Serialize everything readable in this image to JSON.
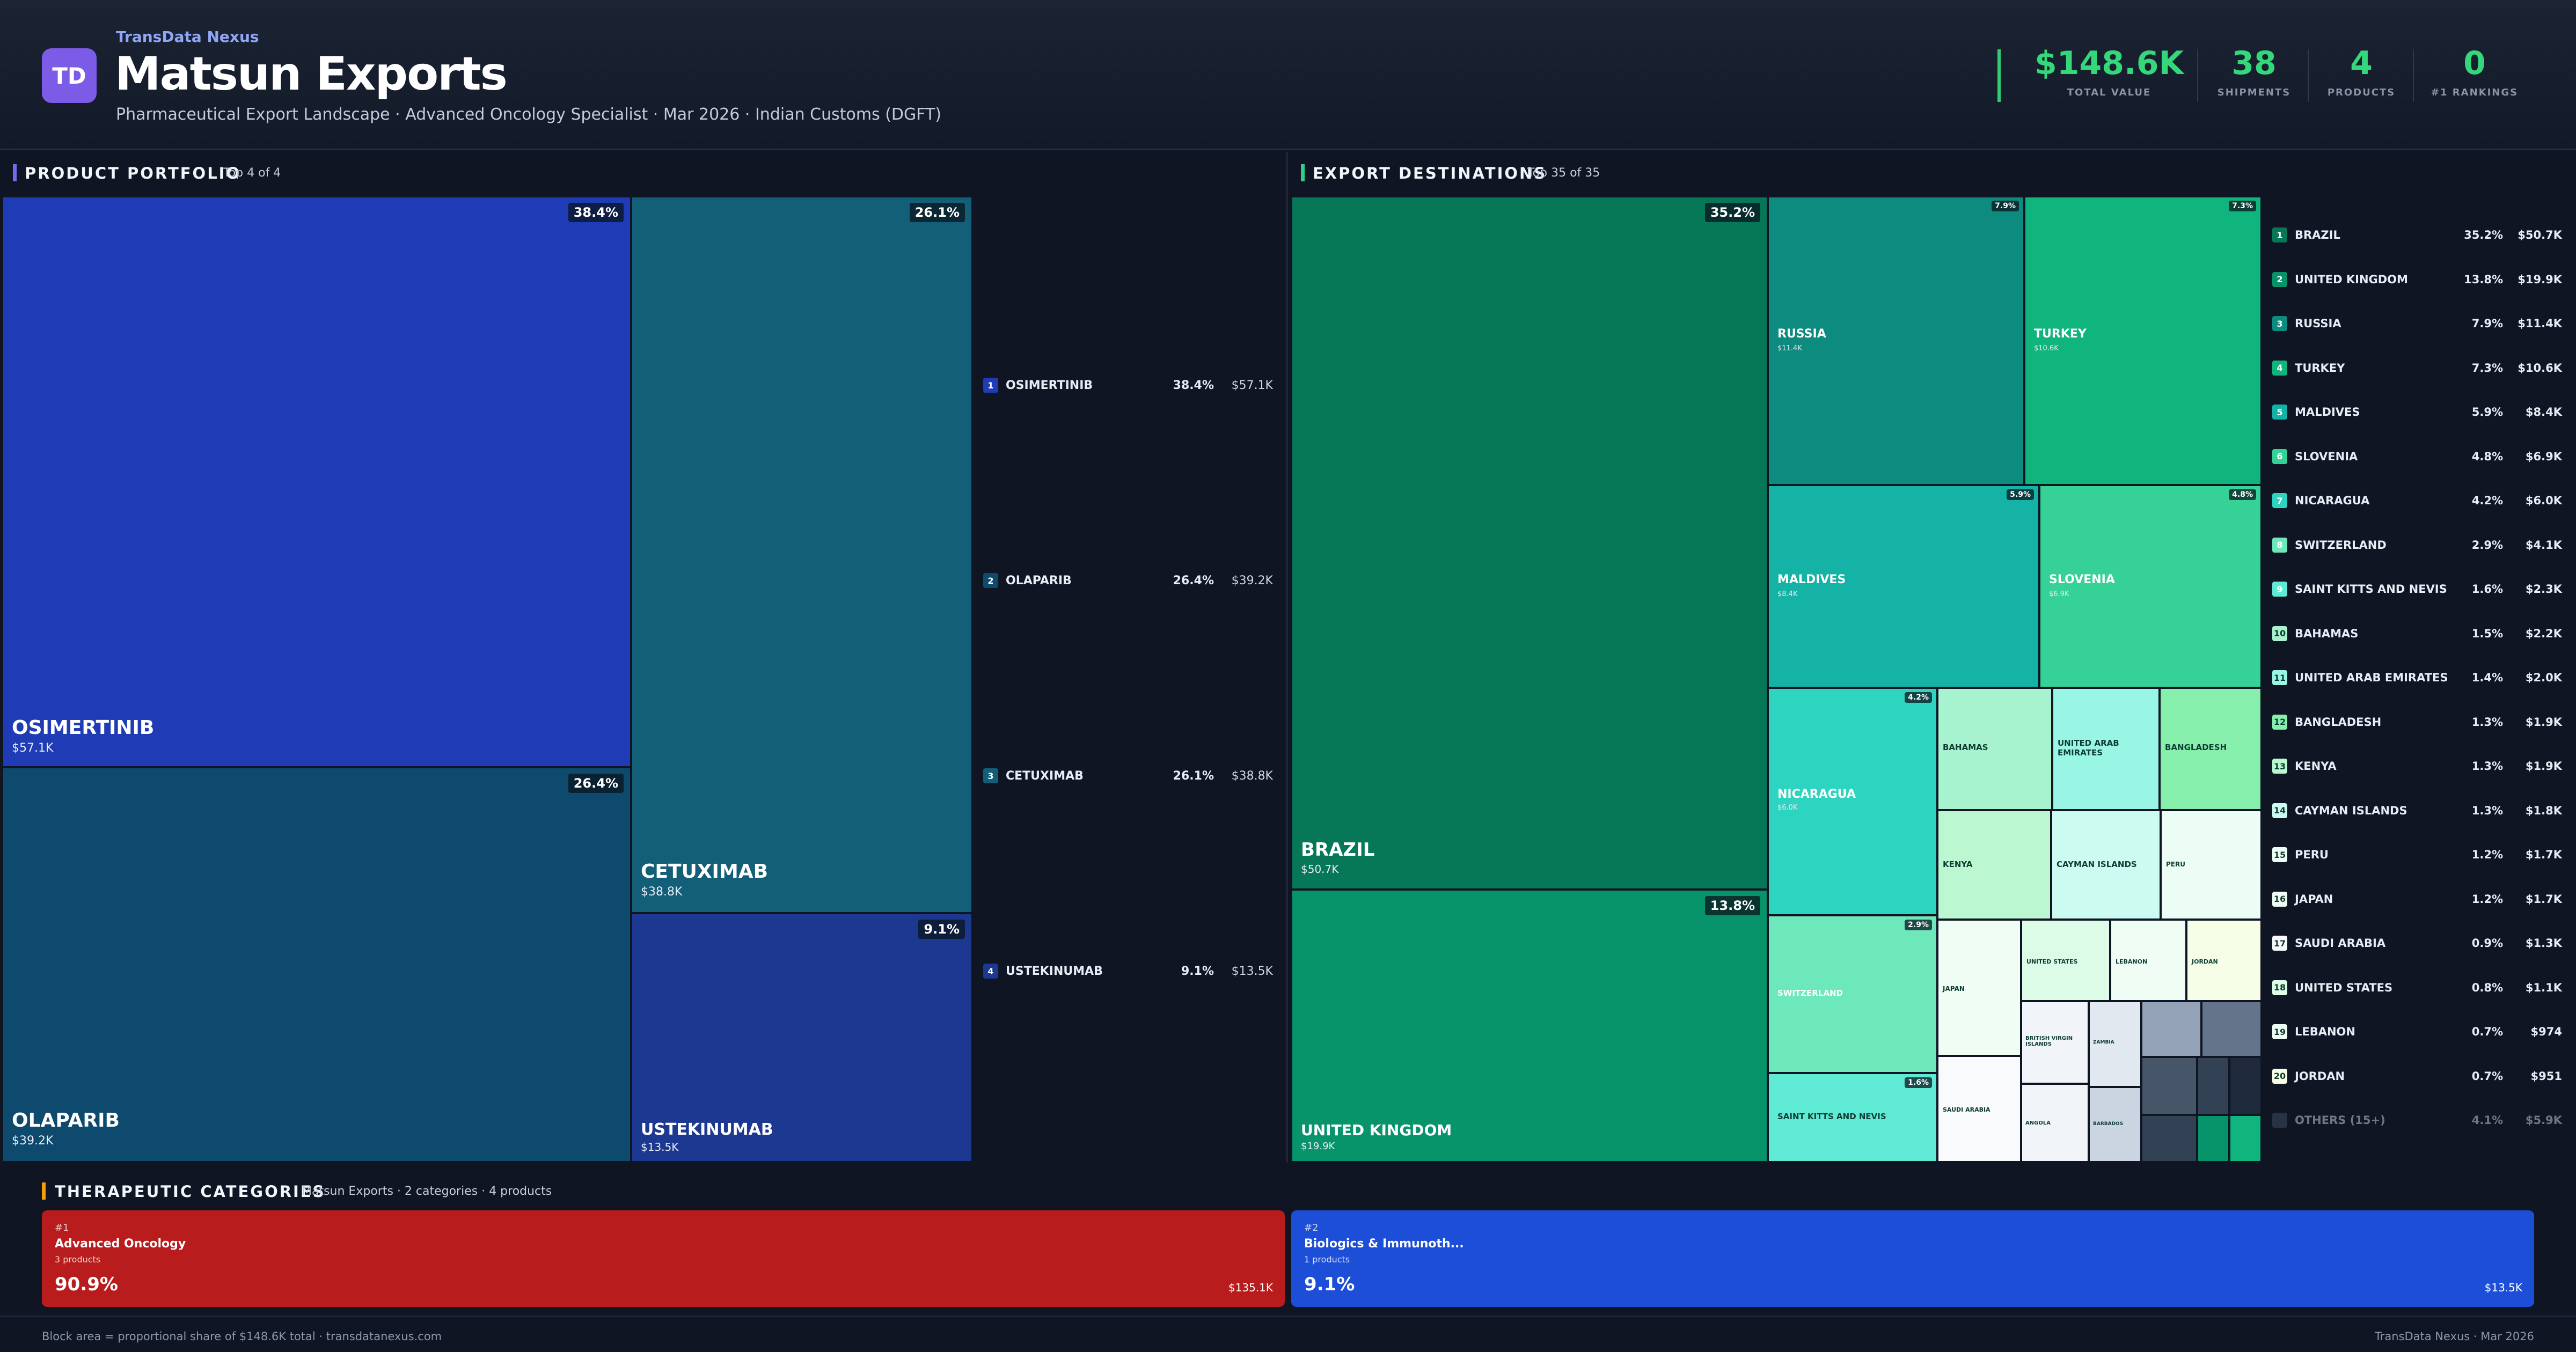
{
  "header": {
    "logo": "TD",
    "brand": "TransData Nexus",
    "company": "Matsun Exports",
    "subtitle": "Pharmaceutical Export Landscape · Advanced Oncology Specialist · Mar 2026 · Indian Customs (DGFT)",
    "kpis": [
      {
        "value": "$148.6K",
        "label": "TOTAL VALUE"
      },
      {
        "value": "38",
        "label": "SHIPMENTS"
      },
      {
        "value": "4",
        "label": "PRODUCTS"
      },
      {
        "value": "0",
        "label": "#1 RANKINGS"
      }
    ]
  },
  "portfolio": {
    "title": "PRODUCT PORTFOLIO",
    "sub": "Top 4 of 4",
    "tiles": [
      {
        "name": "OSIMERTINIB",
        "value": "$57.1K",
        "pct": "38.4%",
        "color": "#1f3bb5"
      },
      {
        "name": "OLAPARIB",
        "value": "$39.2K",
        "pct": "26.4%",
        "color": "#0d4a6e"
      },
      {
        "name": "CETUXIMAB",
        "value": "$38.8K",
        "pct": "26.1%",
        "color": "#135f78"
      },
      {
        "name": "USTEKINUMAB",
        "value": "$13.5K",
        "pct": "9.1%",
        "color": "#1c3890"
      }
    ],
    "ranking": [
      {
        "rank": "1",
        "name": "OSIMERTINIB",
        "pct": "38.4%",
        "value": "$57.1K"
      },
      {
        "rank": "2",
        "name": "OLAPARIB",
        "pct": "26.4%",
        "value": "$39.2K"
      },
      {
        "rank": "3",
        "name": "CETUXIMAB",
        "pct": "26.1%",
        "value": "$38.8K"
      },
      {
        "rank": "4",
        "name": "USTEKINUMAB",
        "pct": "9.1%",
        "value": "$13.5K"
      }
    ]
  },
  "destinations": {
    "title": "EXPORT DESTINATIONS",
    "sub": "Top 35 of 35",
    "tiles": {
      "brazil": {
        "name": "BRAZIL",
        "value": "$50.7K",
        "pct": "35.2%"
      },
      "uk": {
        "name": "UNITED KINGDOM",
        "value": "$19.9K",
        "pct": "13.8%"
      },
      "russia": {
        "name": "RUSSIA",
        "value": "$11.4K",
        "pct": "7.9%"
      },
      "turkey": {
        "name": "TURKEY",
        "value": "$10.6K",
        "pct": "7.3%"
      },
      "maldives": {
        "name": "MALDIVES",
        "value": "$8.4K",
        "pct": "5.9%"
      },
      "slovenia": {
        "name": "SLOVENIA",
        "value": "$6.9K",
        "pct": "4.8%"
      },
      "nicaragua": {
        "name": "NICARAGUA",
        "value": "$6.0K",
        "pct": "4.2%"
      },
      "switzerland": {
        "name": "SWITZERLAND",
        "pct": "2.9%"
      },
      "skn": {
        "name": "SAINT KITTS AND NEVIS",
        "pct": "1.6%"
      },
      "bahamas": {
        "name": "BAHAMAS"
      },
      "uae": {
        "name": "UNITED ARAB EMIRATES"
      },
      "bangladesh": {
        "name": "BANGLADESH"
      },
      "kenya": {
        "name": "KENYA"
      },
      "cayman": {
        "name": "CAYMAN ISLANDS"
      },
      "peru": {
        "name": "PERU"
      },
      "japan": {
        "name": "JAPAN"
      },
      "us": {
        "name": "UNITED STATES"
      },
      "lebanon": {
        "name": "LEBANON"
      },
      "jordan": {
        "name": "JORDAN"
      },
      "saudi": {
        "name": "SAUDI ARABIA"
      },
      "bvi": {
        "name": "BRITISH VIRGIN ISLANDS"
      },
      "zambia": {
        "name": "ZAMBIA"
      },
      "angola": {
        "name": "ANGOLA"
      },
      "barbados": {
        "name": "BARBADOS"
      }
    },
    "ranking": [
      {
        "rank": "1",
        "name": "BRAZIL",
        "pct": "35.2%",
        "value": "$50.7K"
      },
      {
        "rank": "2",
        "name": "UNITED KINGDOM",
        "pct": "13.8%",
        "value": "$19.9K"
      },
      {
        "rank": "3",
        "name": "RUSSIA",
        "pct": "7.9%",
        "value": "$11.4K"
      },
      {
        "rank": "4",
        "name": "TURKEY",
        "pct": "7.3%",
        "value": "$10.6K"
      },
      {
        "rank": "5",
        "name": "MALDIVES",
        "pct": "5.9%",
        "value": "$8.4K"
      },
      {
        "rank": "6",
        "name": "SLOVENIA",
        "pct": "4.8%",
        "value": "$6.9K"
      },
      {
        "rank": "7",
        "name": "NICARAGUA",
        "pct": "4.2%",
        "value": "$6.0K"
      },
      {
        "rank": "8",
        "name": "SWITZERLAND",
        "pct": "2.9%",
        "value": "$4.1K"
      },
      {
        "rank": "9",
        "name": "SAINT KITTS AND NEVIS",
        "pct": "1.6%",
        "value": "$2.3K"
      },
      {
        "rank": "10",
        "name": "BAHAMAS",
        "pct": "1.5%",
        "value": "$2.2K"
      },
      {
        "rank": "11",
        "name": "UNITED ARAB EMIRATES",
        "pct": "1.4%",
        "value": "$2.0K"
      },
      {
        "rank": "12",
        "name": "BANGLADESH",
        "pct": "1.3%",
        "value": "$1.9K"
      },
      {
        "rank": "13",
        "name": "KENYA",
        "pct": "1.3%",
        "value": "$1.9K"
      },
      {
        "rank": "14",
        "name": "CAYMAN ISLANDS",
        "pct": "1.3%",
        "value": "$1.8K"
      },
      {
        "rank": "15",
        "name": "PERU",
        "pct": "1.2%",
        "value": "$1.7K"
      },
      {
        "rank": "16",
        "name": "JAPAN",
        "pct": "1.2%",
        "value": "$1.7K"
      },
      {
        "rank": "17",
        "name": "SAUDI ARABIA",
        "pct": "0.9%",
        "value": "$1.3K"
      },
      {
        "rank": "18",
        "name": "UNITED STATES",
        "pct": "0.8%",
        "value": "$1.1K"
      },
      {
        "rank": "19",
        "name": "LEBANON",
        "pct": "0.7%",
        "value": "$974"
      },
      {
        "rank": "20",
        "name": "JORDAN",
        "pct": "0.7%",
        "value": "$951"
      }
    ],
    "others": {
      "name": "OTHERS (15+)",
      "pct": "4.1%",
      "value": "$5.9K"
    }
  },
  "categories": {
    "title": "THERAPEUTIC CATEGORIES",
    "sub": "Matsun Exports · 2 categories · 4 products",
    "cards": [
      {
        "rank": "#1",
        "name": "Advanced Oncology",
        "products": "3 products",
        "pct": "90.9%",
        "value": "$135.1K",
        "color": "#b91c1c"
      },
      {
        "rank": "#2",
        "name": "Biologics & Immunoth...",
        "products": "1 products",
        "pct": "9.1%",
        "value": "$13.5K",
        "color": "#1d4ed8"
      }
    ]
  },
  "footer": {
    "left": "Block area = proportional share of $148.6K total · transdatanexus.com",
    "right": "TransData Nexus · Mar 2026"
  }
}
